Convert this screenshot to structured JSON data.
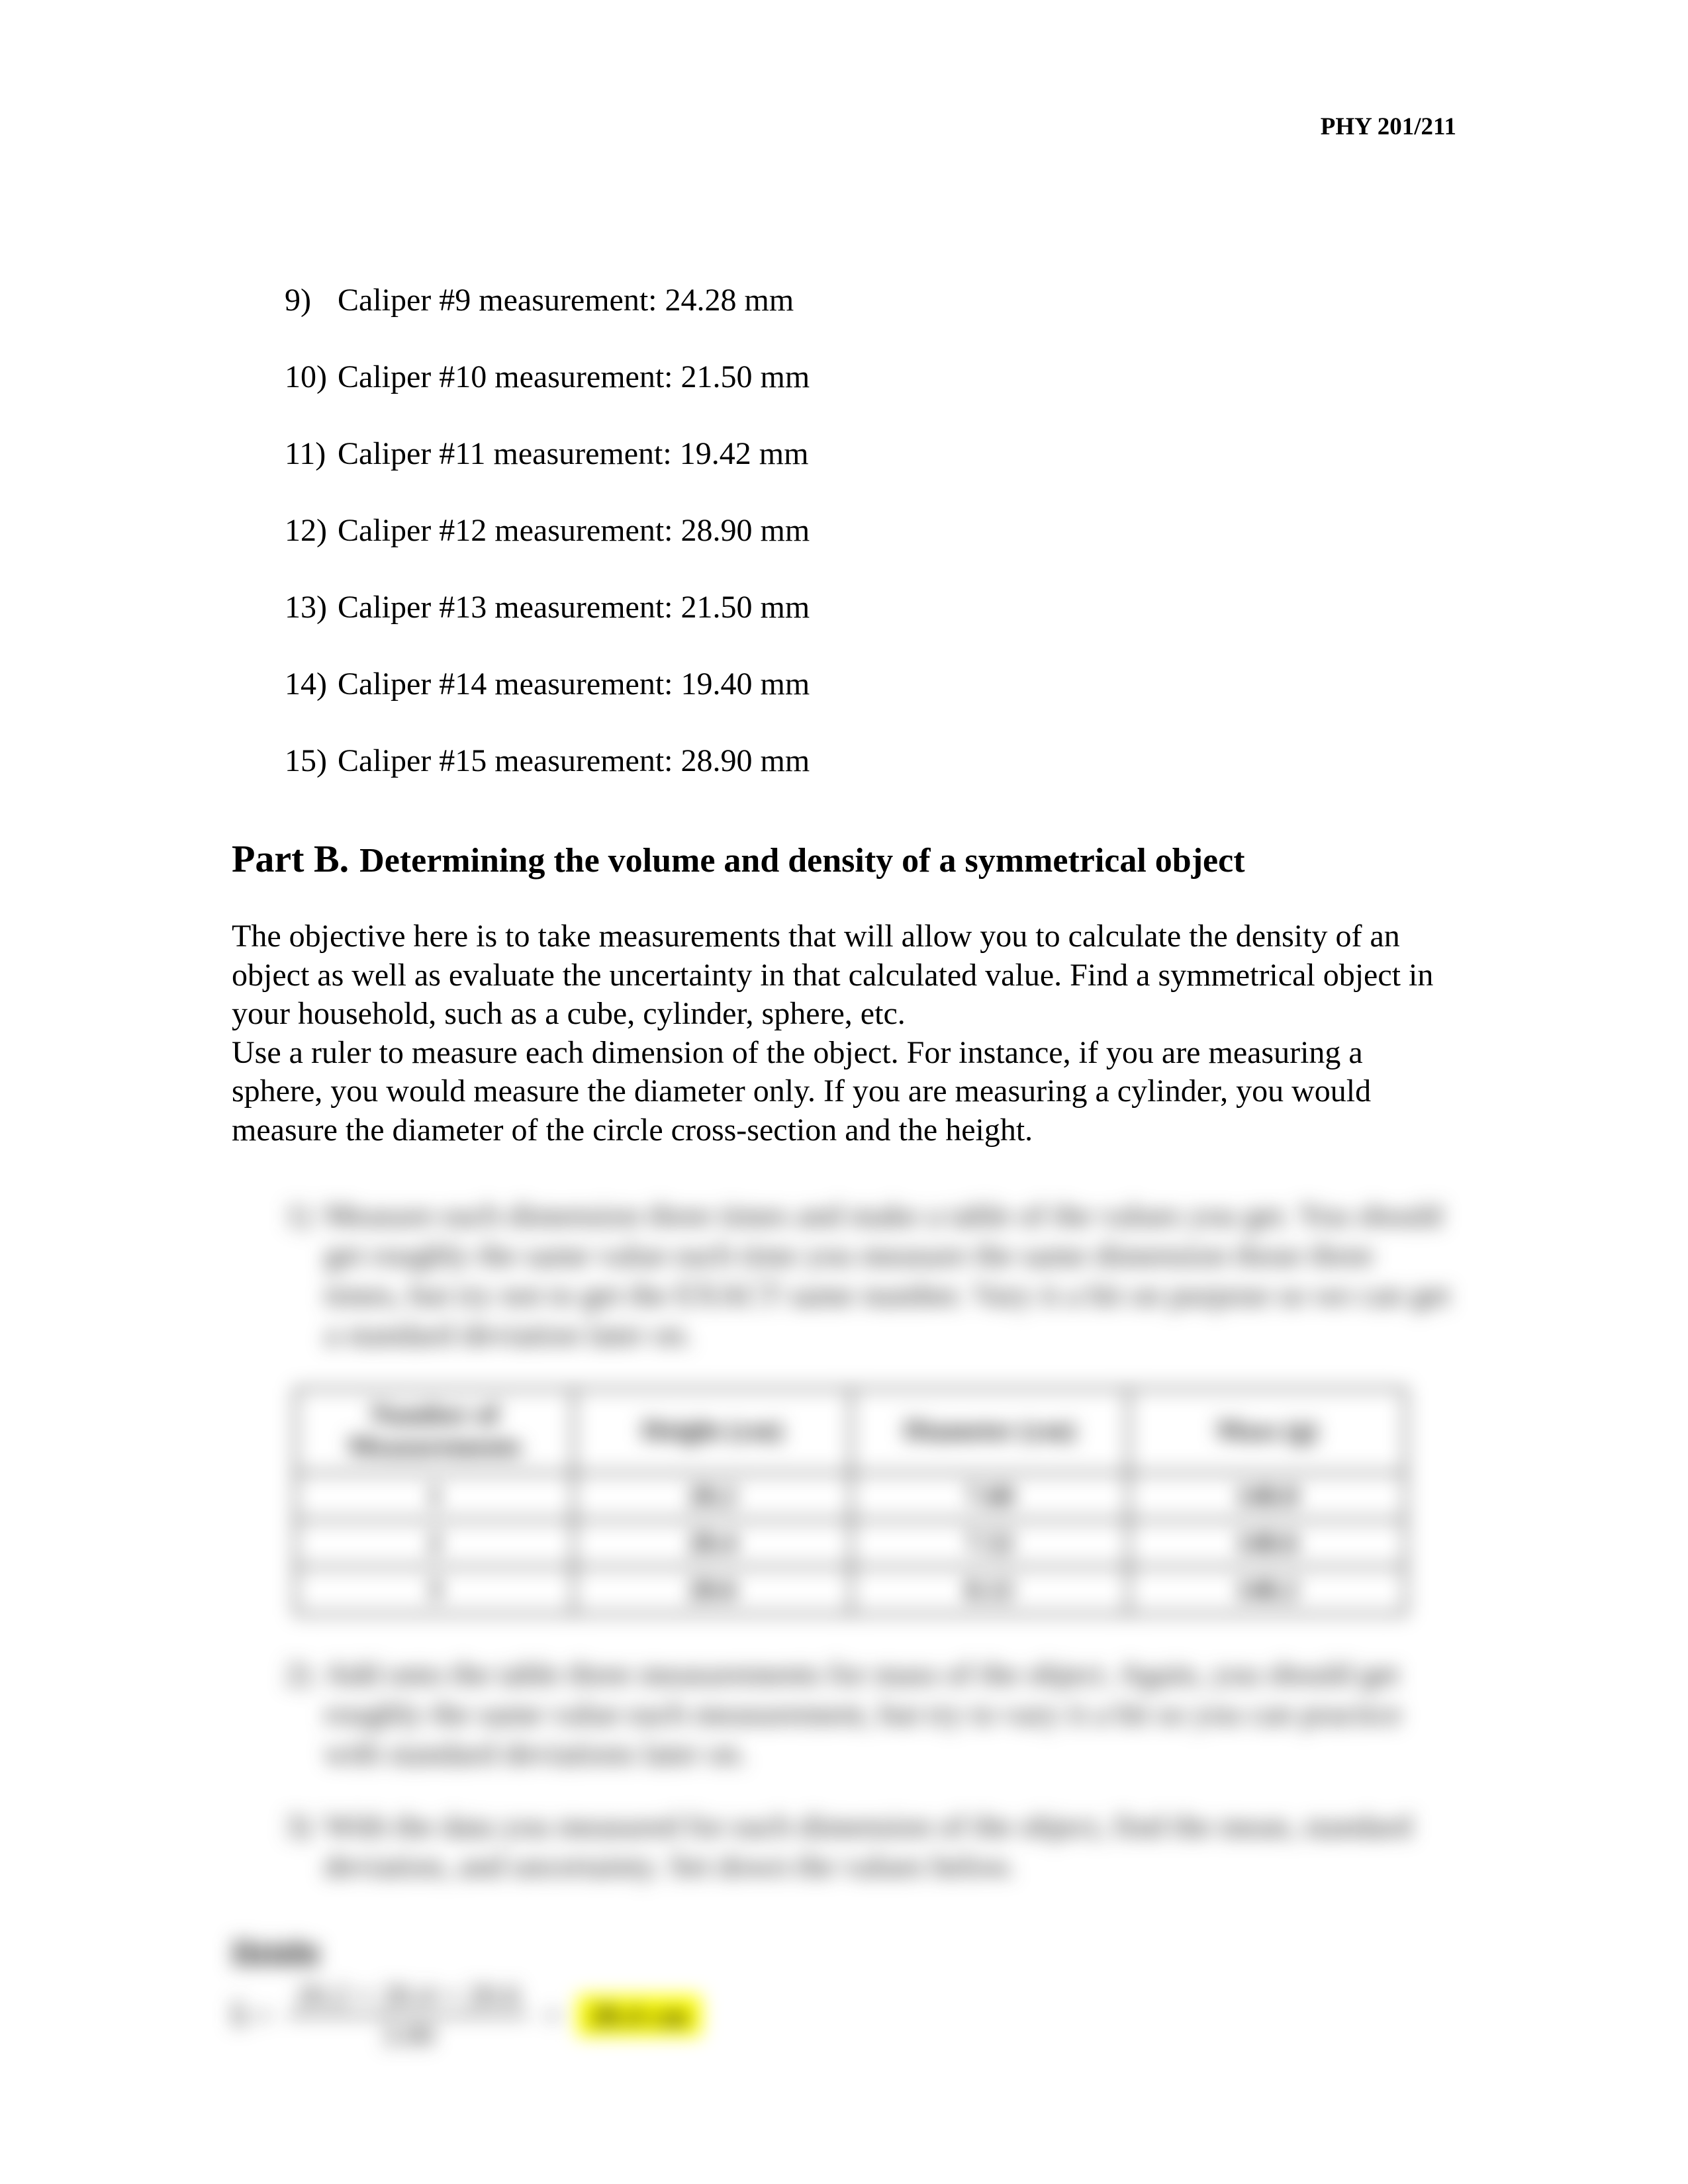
{
  "header": {
    "course": "PHY 201/211"
  },
  "measurements": [
    {
      "n": "9)",
      "text": "Caliper #9 measurement: 24.28 mm"
    },
    {
      "n": "10)",
      "text": "Caliper #10 measurement: 21.50 mm"
    },
    {
      "n": "11)",
      "text": "Caliper #11 measurement: 19.42 mm"
    },
    {
      "n": "12)",
      "text": "Caliper #12 measurement: 28.90 mm"
    },
    {
      "n": "13)",
      "text": "Caliper #13 measurement: 21.50 mm"
    },
    {
      "n": "14)",
      "text": "Caliper #14 measurement: 19.40 mm"
    },
    {
      "n": "15)",
      "text": "Caliper #15 measurement: 28.90 mm"
    }
  ],
  "partB": {
    "label": "Part B.",
    "title": "Determining the volume and density of a symmetrical object",
    "paragraph": "The objective here is to take measurements that will allow you to calculate the density of an\n object as well as evaluate the uncertainty in that calculated value. Find a symmetrical object in your household, such as a cube, cylinder, sphere, etc.\nUse a ruler to measure each dimension of the object. For instance, if you are measuring a sphere, you would measure the diameter only. If you are measuring a cylinder, you would measure the diameter of the circle cross-section and the height."
  },
  "blurred": {
    "step1_num": "1)",
    "step1_text": "Measure each dimension three times and make a table of the values you get. You should get roughly the same value each time you measure the same dimension those three times, but try not to get the EXACT same number. Vary it a bit on purpose so we can get a standard deviation later on.",
    "table": {
      "headers": [
        "Number of Measurements",
        "Height (cm)",
        "Diameter (cm)",
        "Mass (g)"
      ],
      "rows": [
        [
          "1",
          "20.2",
          "7.60",
          "140.0"
        ],
        [
          "2",
          "20.4",
          "7.52",
          "140.6"
        ],
        [
          "3",
          "20.6",
          "8.12",
          "140.2"
        ]
      ]
    },
    "step2_num": "2)",
    "step2_text": "Add onto the table three measurements for mass of the object. Again, you should get roughly the same value each measurement, but try to vary it a bit so you can practice with standard deviations later on.",
    "step3_num": "3)",
    "step3_text": "With the data you measured for each dimension of the object, find the mean, standard deviation, and uncertainty. Set down the values below.",
    "formula": {
      "title": "Height",
      "lhs": "h̄ =",
      "numer": "20.2 + 20.4 + 20.6",
      "denom": "3.00",
      "eq": "=",
      "result": "20.4 cm"
    }
  },
  "colors": {
    "text": "#000000",
    "background": "#ffffff",
    "highlight": "#ffff00",
    "table_border": "#000000"
  }
}
